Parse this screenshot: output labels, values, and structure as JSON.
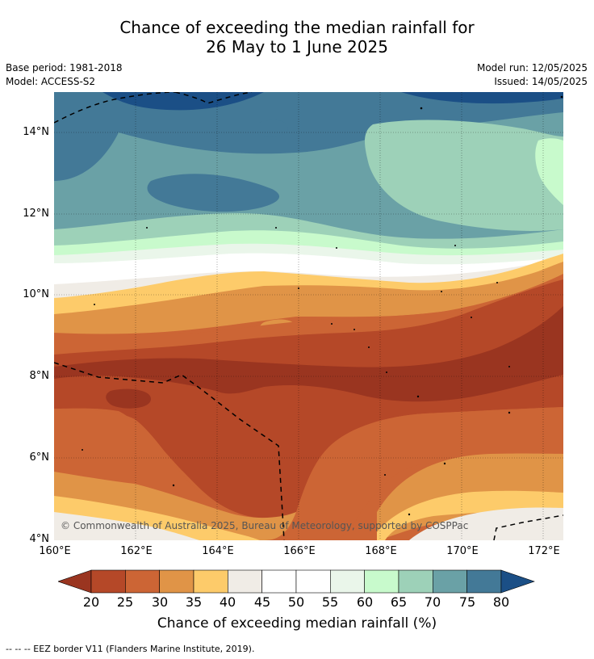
{
  "title": {
    "line1": "Chance of exceeding the median rainfall for",
    "line2": "26 May to 1 June 2025"
  },
  "meta": {
    "base_period": "Base period: 1981-2018",
    "model": "Model: ACCESS-S2",
    "model_run": "Model run: 12/05/2025",
    "issued": "Issued: 14/05/2025"
  },
  "map": {
    "lat_ticks": [
      "14°N",
      "12°N",
      "10°N",
      "8°N",
      "6°N",
      "4°N"
    ],
    "lon_ticks": [
      "160°E",
      "162°E",
      "164°E",
      "166°E",
      "168°E",
      "170°E",
      "172°E"
    ],
    "copyright": "© Commonwealth of Australia 2025, Bureau of Meteorology, supported by COSPPac"
  },
  "colorbar": {
    "labels": [
      "20",
      "25",
      "30",
      "35",
      "40",
      "45",
      "50",
      "55",
      "60",
      "65",
      "70",
      "75",
      "80"
    ],
    "colors": {
      "below20": "#9a3520",
      "c20_25": "#b54828",
      "c25_30": "#cc6535",
      "c30_35": "#e09447",
      "c35_40": "#fdcb6a",
      "c40_45": "#f0ece6",
      "c45_50": "#ffffff",
      "c50_55": "#ffffff",
      "c55_60": "#eaf6ea",
      "c60_65": "#c8facc",
      "c65_70": "#9dd1b8",
      "c70_75": "#6aa1a6",
      "c75_80": "#437997",
      "above80": "#1b4f86"
    },
    "title": "Chance of exceeding median rainfall (%)"
  },
  "footnote": "--  --  -- EEZ border V11 (Flanders Marine Institute, 2019)."
}
